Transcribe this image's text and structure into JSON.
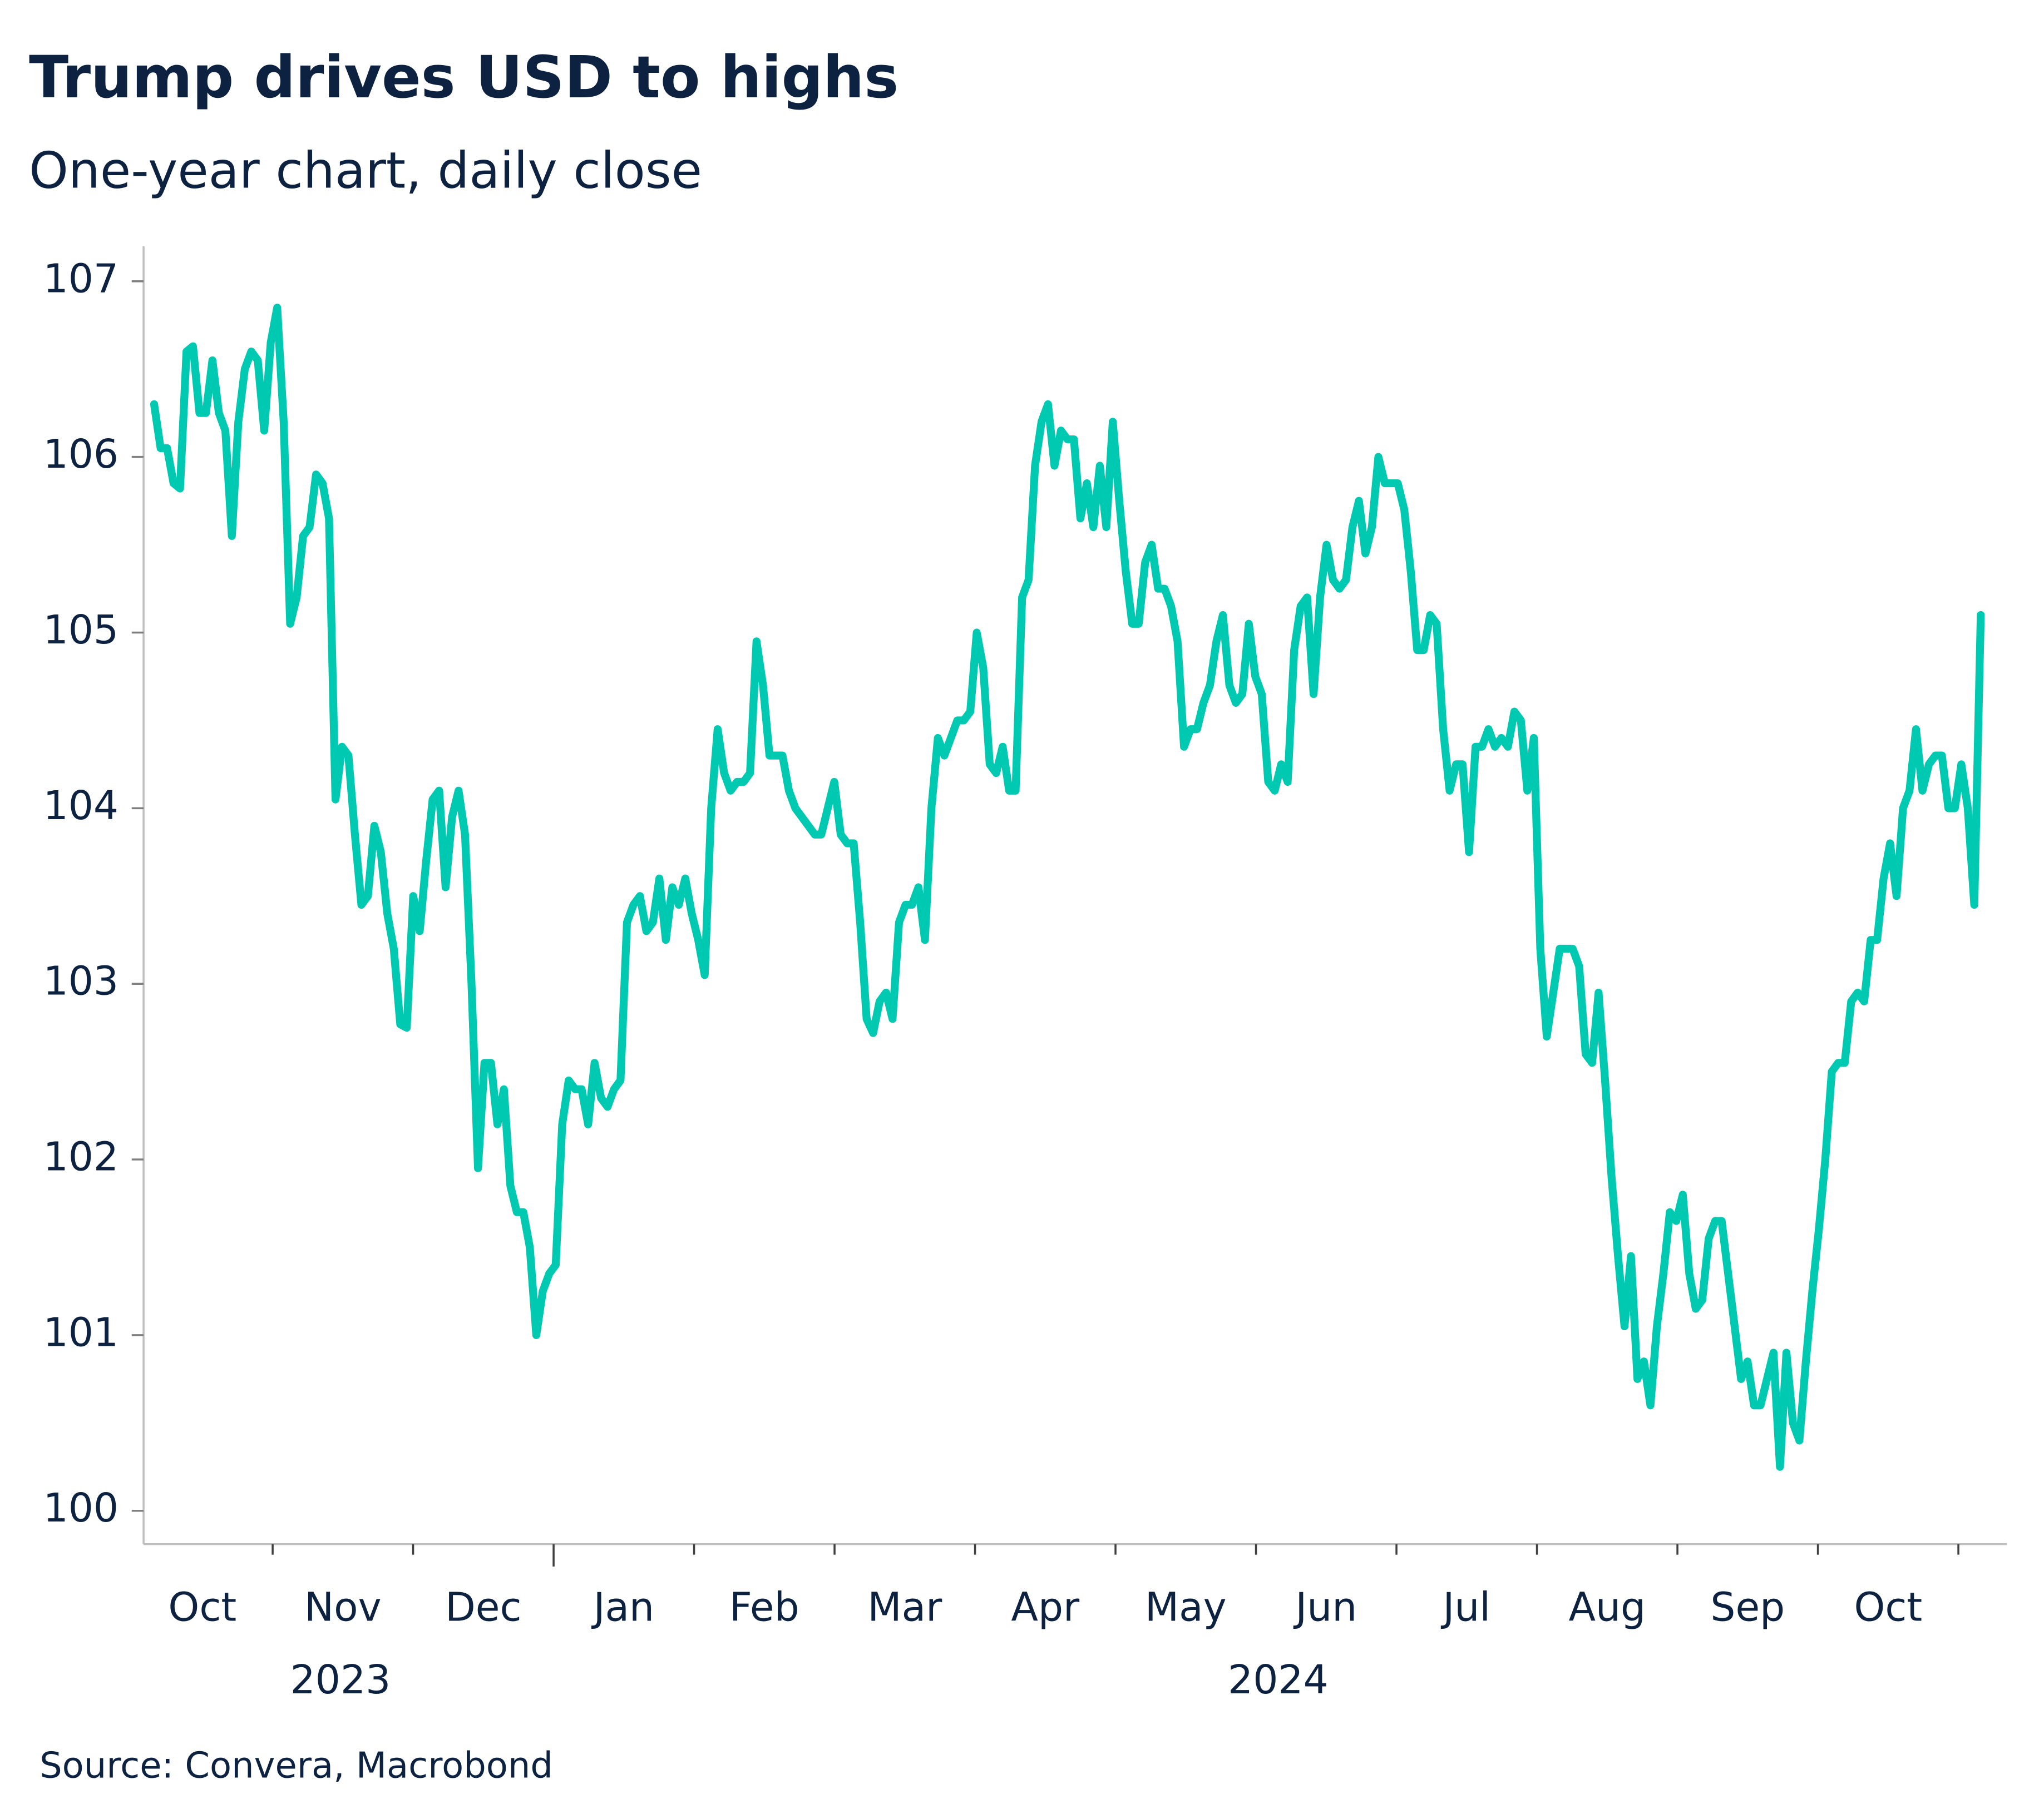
{
  "chart_data": {
    "type": "line",
    "title": "Trump drives USD to highs",
    "subtitle": "One-year chart, daily close",
    "source": "Source: Convera, Macrobond",
    "color": "#00c9b1",
    "month_labels": [
      "Oct",
      "Nov",
      "Dec",
      "Jan",
      "Feb",
      "Mar",
      "Apr",
      "May",
      "Jun",
      "Jul",
      "Aug",
      "Sep",
      "Oct"
    ],
    "year_labels": [
      "2023",
      "2024"
    ],
    "ylim": [
      99.81,
      107.2
    ],
    "yticks": [
      100,
      101,
      102,
      103,
      104,
      105,
      106,
      107
    ],
    "values": [
      106.3,
      106.05,
      106.05,
      105.85,
      105.82,
      106.6,
      106.63,
      106.25,
      106.25,
      106.55,
      106.25,
      106.15,
      105.55,
      106.2,
      106.5,
      106.6,
      106.55,
      106.15,
      106.65,
      106.85,
      106.2,
      105.05,
      105.2,
      105.55,
      105.6,
      105.9,
      105.85,
      105.65,
      104.05,
      104.35,
      104.3,
      103.85,
      103.45,
      103.5,
      103.9,
      103.75,
      103.4,
      103.2,
      102.77,
      102.75,
      103.5,
      103.3,
      103.7,
      104.05,
      104.1,
      103.55,
      103.95,
      104.1,
      103.85,
      103.0,
      101.95,
      102.55,
      102.55,
      102.2,
      102.4,
      101.85,
      101.7,
      101.7,
      101.5,
      101.0,
      101.25,
      101.35,
      101.4,
      102.2,
      102.45,
      102.4,
      102.4,
      102.2,
      102.55,
      102.35,
      102.3,
      102.4,
      102.45,
      103.35,
      103.45,
      103.5,
      103.3,
      103.35,
      103.6,
      103.25,
      103.55,
      103.45,
      103.6,
      103.4,
      103.25,
      103.05,
      104.0,
      104.45,
      104.2,
      104.1,
      104.15,
      104.15,
      104.2,
      104.95,
      104.7,
      104.3,
      104.3,
      104.3,
      104.1,
      104.0,
      103.95,
      103.9,
      103.85,
      103.85,
      104.0,
      104.15,
      103.85,
      103.8,
      103.8,
      103.35,
      102.8,
      102.72,
      102.9,
      102.95,
      102.8,
      103.35,
      103.45,
      103.45,
      103.55,
      103.25,
      104.0,
      104.4,
      104.3,
      104.4,
      104.5,
      104.5,
      104.55,
      105.0,
      104.8,
      104.25,
      104.2,
      104.35,
      104.1,
      104.1,
      105.2,
      105.3,
      105.95,
      106.2,
      106.3,
      105.95,
      106.15,
      106.1,
      106.1,
      105.65,
      105.85,
      105.6,
      105.95,
      105.6,
      106.2,
      105.75,
      105.35,
      105.05,
      105.05,
      105.4,
      105.5,
      105.25,
      105.25,
      105.15,
      104.95,
      104.35,
      104.45,
      104.45,
      104.6,
      104.7,
      104.95,
      105.1,
      104.7,
      104.6,
      104.65,
      105.05,
      104.75,
      104.65,
      104.15,
      104.1,
      104.25,
      104.15,
      104.9,
      105.15,
      105.2,
      104.65,
      105.2,
      105.5,
      105.3,
      105.25,
      105.3,
      105.6,
      105.75,
      105.45,
      105.6,
      106.0,
      105.85,
      105.85,
      105.85,
      105.7,
      105.35,
      104.9,
      104.9,
      105.1,
      105.05,
      104.45,
      104.1,
      104.25,
      104.25,
      103.75,
      104.35,
      104.35,
      104.45,
      104.35,
      104.4,
      104.35,
      104.55,
      104.5,
      104.1,
      104.4,
      103.2,
      102.7,
      102.95,
      103.2,
      103.2,
      103.2,
      103.1,
      102.6,
      102.55,
      102.95,
      102.45,
      101.9,
      101.45,
      101.05,
      101.45,
      100.75,
      100.85,
      100.6,
      101.05,
      101.35,
      101.7,
      101.65,
      101.8,
      101.35,
      101.15,
      101.2,
      101.55,
      101.65,
      101.65,
      101.35,
      101.05,
      100.75,
      100.85,
      100.6,
      100.6,
      100.75,
      100.9,
      100.25,
      100.9,
      100.5,
      100.4,
      100.85,
      101.25,
      101.6,
      102.0,
      102.5,
      102.55,
      102.55,
      102.9,
      102.95,
      102.9,
      103.25,
      103.25,
      103.6,
      103.8,
      103.5,
      104.0,
      104.1,
      104.45,
      104.1,
      104.25,
      104.3,
      104.3,
      104.0,
      104.0,
      104.25,
      104.0,
      103.45,
      105.1
    ]
  }
}
